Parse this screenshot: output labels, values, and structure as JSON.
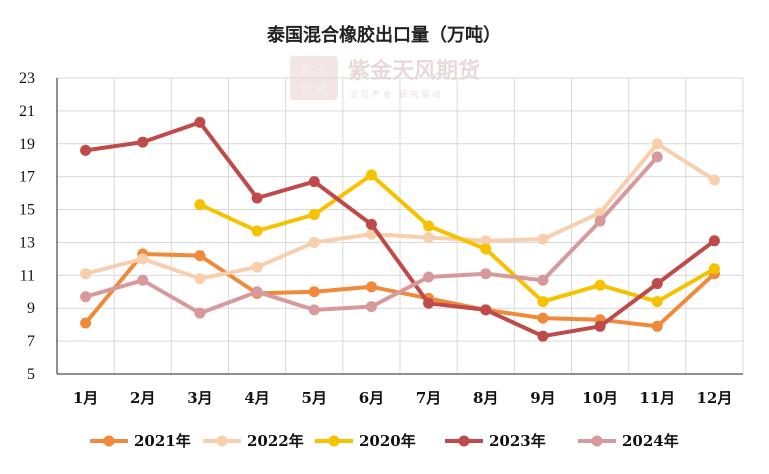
{
  "chart_data": {
    "type": "line",
    "title": "泰国混合橡胶出口量（万吨）",
    "xlabel": "",
    "ylabel": "",
    "categories": [
      "1月",
      "2月",
      "3月",
      "4月",
      "5月",
      "6月",
      "7月",
      "8月",
      "9月",
      "10月",
      "11月",
      "12月"
    ],
    "ylim": [
      5,
      23
    ],
    "yticks": [
      5,
      7,
      9,
      11,
      13,
      15,
      17,
      19,
      21,
      23
    ],
    "grid": {
      "horizontal": true,
      "vertical": true
    },
    "legend_position": "bottom",
    "series": [
      {
        "name": "2021年",
        "color": "#f08a3a",
        "values": [
          8.1,
          12.3,
          12.2,
          9.9,
          10.0,
          10.3,
          9.6,
          8.9,
          8.4,
          8.3,
          7.9,
          11.1
        ]
      },
      {
        "name": "2022年",
        "color": "#f8cfad",
        "values": [
          11.1,
          12.0,
          10.8,
          11.5,
          13.0,
          13.5,
          13.3,
          13.1,
          13.2,
          14.8,
          19.0,
          16.8
        ]
      },
      {
        "name": "2020年",
        "color": "#f6c200",
        "values": [
          null,
          null,
          15.3,
          13.7,
          14.7,
          17.1,
          14.0,
          12.6,
          9.4,
          10.4,
          9.4,
          11.4
        ]
      },
      {
        "name": "2023年",
        "color": "#bf4a4a",
        "values": [
          18.6,
          19.1,
          20.3,
          15.7,
          16.7,
          14.1,
          9.3,
          8.9,
          7.3,
          7.9,
          10.5,
          13.1
        ]
      },
      {
        "name": "2024年",
        "color": "#d7999b",
        "values": [
          9.7,
          10.7,
          8.7,
          10.0,
          8.9,
          9.1,
          10.9,
          11.1,
          10.7,
          14.3,
          18.2,
          null
        ]
      }
    ]
  },
  "watermark": {
    "logo_text_top": "紫天",
    "logo_text_bottom": "金風",
    "name": "紫金天风期货",
    "tagline": "立足产业 研究驱动"
  }
}
